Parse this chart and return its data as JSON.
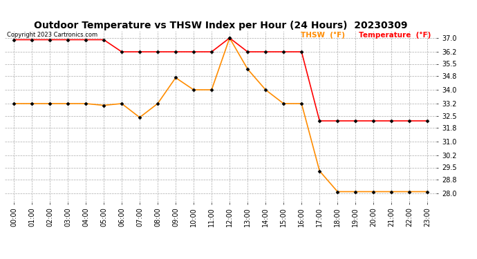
{
  "title": "Outdoor Temperature vs THSW Index per Hour (24 Hours)  20230309",
  "copyright": "Copyright 2023 Cartronics.com",
  "legend_thsw": "THSW  (°F)",
  "legend_temp": "Temperature  (°F)",
  "hours": [
    0,
    1,
    2,
    3,
    4,
    5,
    6,
    7,
    8,
    9,
    10,
    11,
    12,
    13,
    14,
    15,
    16,
    17,
    18,
    19,
    20,
    21,
    22,
    23
  ],
  "thsw": [
    36.9,
    36.9,
    36.9,
    36.9,
    36.9,
    36.9,
    36.2,
    36.2,
    36.2,
    36.2,
    36.2,
    36.2,
    37.0,
    36.2,
    36.2,
    36.2,
    36.2,
    32.2,
    32.2,
    32.2,
    32.2,
    32.2,
    32.2,
    32.2
  ],
  "temperature": [
    33.2,
    33.2,
    33.2,
    33.2,
    33.2,
    33.1,
    33.2,
    32.4,
    33.2,
    34.7,
    34.0,
    34.0,
    37.0,
    35.2,
    34.0,
    33.2,
    33.2,
    29.3,
    28.1,
    28.1,
    28.1,
    28.1,
    28.1,
    28.1
  ],
  "thsw_color": "#ff0000",
  "temp_color": "#ff8c00",
  "ylim_min": 27.5,
  "ylim_max": 37.4,
  "yticks": [
    28.0,
    28.8,
    29.5,
    30.2,
    31.0,
    31.8,
    32.5,
    33.2,
    34.0,
    34.8,
    35.5,
    36.2,
    37.0
  ],
  "background_color": "#ffffff",
  "grid_color": "#aaaaaa",
  "title_fontsize": 10,
  "tick_fontsize": 7,
  "marker": "D",
  "marker_size": 2.5,
  "line_width": 1.2,
  "fig_width": 6.9,
  "fig_height": 3.75,
  "dpi": 100
}
